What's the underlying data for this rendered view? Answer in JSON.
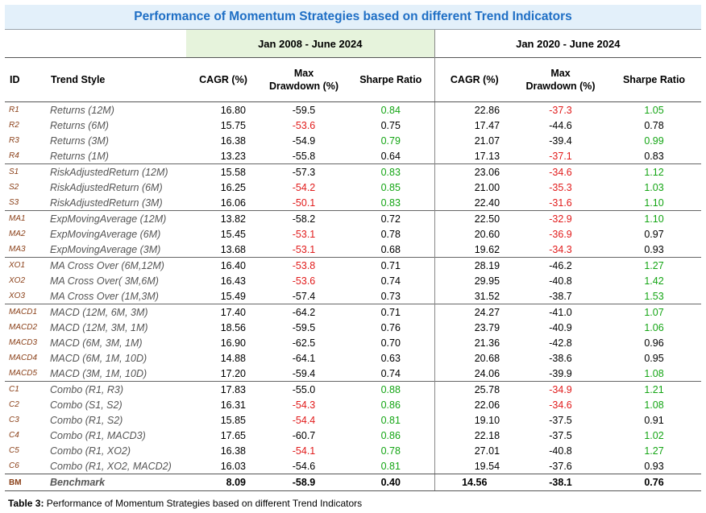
{
  "title": "Performance of Momentum Strategies based on different Trend Indicators",
  "periods": [
    "Jan 2008 - June 2024",
    "Jan 2020 - June 2024"
  ],
  "headers": {
    "id": "ID",
    "style": "Trend Style",
    "cagr": "CAGR (%)",
    "mdd_line1": "Max",
    "mdd_line2": "Drawdown (%)",
    "sharpe": "Sharpe Ratio"
  },
  "colors": {
    "title": "#1f6fc5",
    "negative": "#e11b1b",
    "positive": "#14a514",
    "id": "#8a3f17"
  },
  "rows": [
    {
      "id": "R1",
      "style": "Returns (12M)",
      "a": [
        "16.80",
        "-59.5",
        "0.84"
      ],
      "ac": [
        "",
        "",
        "g"
      ],
      "b": [
        "22.86",
        "-37.3",
        "1.05"
      ],
      "bc": [
        "",
        "r",
        "g"
      ],
      "g": 1
    },
    {
      "id": "R2",
      "style": "Returns (6M)",
      "a": [
        "15.75",
        "-53.6",
        "0.75"
      ],
      "ac": [
        "",
        "r",
        ""
      ],
      "b": [
        "17.47",
        "-44.6",
        "0.78"
      ],
      "bc": [
        "",
        "",
        ""
      ],
      "g": 0
    },
    {
      "id": "R3",
      "style": "Returns (3M)",
      "a": [
        "16.38",
        "-54.9",
        "0.79"
      ],
      "ac": [
        "",
        "",
        "g"
      ],
      "b": [
        "21.07",
        "-39.4",
        "0.99"
      ],
      "bc": [
        "",
        "",
        "g"
      ],
      "g": 0
    },
    {
      "id": "R4",
      "style": "Returns (1M)",
      "a": [
        "13.23",
        "-55.8",
        "0.64"
      ],
      "ac": [
        "",
        "",
        ""
      ],
      "b": [
        "17.13",
        "-37.1",
        "0.83"
      ],
      "bc": [
        "",
        "r",
        ""
      ],
      "g": 0
    },
    {
      "id": "S1",
      "style": "RiskAdjustedReturn (12M)",
      "a": [
        "15.58",
        "-57.3",
        "0.83"
      ],
      "ac": [
        "",
        "",
        "g"
      ],
      "b": [
        "23.06",
        "-34.6",
        "1.12"
      ],
      "bc": [
        "",
        "r",
        "g"
      ],
      "g": 1
    },
    {
      "id": "S2",
      "style": "RiskAdjustedReturn (6M)",
      "a": [
        "16.25",
        "-54.2",
        "0.85"
      ],
      "ac": [
        "",
        "r",
        "g"
      ],
      "b": [
        "21.00",
        "-35.3",
        "1.03"
      ],
      "bc": [
        "",
        "r",
        "g"
      ],
      "g": 0
    },
    {
      "id": "S3",
      "style": "RiskAdjustedReturn (3M)",
      "a": [
        "16.06",
        "-50.1",
        "0.83"
      ],
      "ac": [
        "",
        "r",
        "g"
      ],
      "b": [
        "22.40",
        "-31.6",
        "1.10"
      ],
      "bc": [
        "",
        "r",
        "g"
      ],
      "g": 0
    },
    {
      "id": "MA1",
      "style": "ExpMovingAverage (12M)",
      "a": [
        "13.82",
        "-58.2",
        "0.72"
      ],
      "ac": [
        "",
        "",
        ""
      ],
      "b": [
        "22.50",
        "-32.9",
        "1.10"
      ],
      "bc": [
        "",
        "r",
        "g"
      ],
      "g": 1
    },
    {
      "id": "MA2",
      "style": "ExpMovingAverage (6M)",
      "a": [
        "15.45",
        "-53.1",
        "0.78"
      ],
      "ac": [
        "",
        "r",
        ""
      ],
      "b": [
        "20.60",
        "-36.9",
        "0.97"
      ],
      "bc": [
        "",
        "r",
        ""
      ],
      "g": 0
    },
    {
      "id": "MA3",
      "style": "ExpMovingAverage (3M)",
      "a": [
        "13.68",
        "-53.1",
        "0.68"
      ],
      "ac": [
        "",
        "r",
        ""
      ],
      "b": [
        "19.62",
        "-34.3",
        "0.93"
      ],
      "bc": [
        "",
        "r",
        ""
      ],
      "g": 0
    },
    {
      "id": "XO1",
      "style": "MA Cross Over (6M,12M)",
      "a": [
        "16.40",
        "-53.8",
        "0.71"
      ],
      "ac": [
        "",
        "r",
        ""
      ],
      "b": [
        "28.19",
        "-46.2",
        "1.27"
      ],
      "bc": [
        "",
        "",
        "g"
      ],
      "g": 1
    },
    {
      "id": "XO2",
      "style": "MA Cross Over( 3M,6M)",
      "a": [
        "16.43",
        "-53.6",
        "0.74"
      ],
      "ac": [
        "",
        "r",
        ""
      ],
      "b": [
        "29.95",
        "-40.8",
        "1.42"
      ],
      "bc": [
        "",
        "",
        "g"
      ],
      "g": 0
    },
    {
      "id": "XO3",
      "style": "MA Cross Over (1M,3M)",
      "a": [
        "15.49",
        "-57.4",
        "0.73"
      ],
      "ac": [
        "",
        "",
        ""
      ],
      "b": [
        "31.52",
        "-38.7",
        "1.53"
      ],
      "bc": [
        "",
        "",
        "g"
      ],
      "g": 0
    },
    {
      "id": "MACD1",
      "style": "MACD (12M, 6M, 3M)",
      "a": [
        "17.40",
        "-64.2",
        "0.71"
      ],
      "ac": [
        "",
        "",
        ""
      ],
      "b": [
        "24.27",
        "-41.0",
        "1.07"
      ],
      "bc": [
        "",
        "",
        "g"
      ],
      "g": 1
    },
    {
      "id": "MACD2",
      "style": "MACD (12M, 3M, 1M)",
      "a": [
        "18.56",
        "-59.5",
        "0.76"
      ],
      "ac": [
        "",
        "",
        ""
      ],
      "b": [
        "23.79",
        "-40.9",
        "1.06"
      ],
      "bc": [
        "",
        "",
        "g"
      ],
      "g": 0
    },
    {
      "id": "MACD3",
      "style": "MACD (6M, 3M, 1M)",
      "a": [
        "16.90",
        "-62.5",
        "0.70"
      ],
      "ac": [
        "",
        "",
        ""
      ],
      "b": [
        "21.36",
        "-42.8",
        "0.96"
      ],
      "bc": [
        "",
        "",
        ""
      ],
      "g": 0
    },
    {
      "id": "MACD4",
      "style": "MACD (6M, 1M, 10D)",
      "a": [
        "14.88",
        "-64.1",
        "0.63"
      ],
      "ac": [
        "",
        "",
        ""
      ],
      "b": [
        "20.68",
        "-38.6",
        "0.95"
      ],
      "bc": [
        "",
        "",
        ""
      ],
      "g": 0
    },
    {
      "id": "MACD5",
      "style": "MACD (3M, 1M, 10D)",
      "a": [
        "17.20",
        "-59.4",
        "0.74"
      ],
      "ac": [
        "",
        "",
        ""
      ],
      "b": [
        "24.06",
        "-39.9",
        "1.08"
      ],
      "bc": [
        "",
        "",
        "g"
      ],
      "g": 0
    },
    {
      "id": "C1",
      "style": "Combo (R1, R3)",
      "a": [
        "17.83",
        "-55.0",
        "0.88"
      ],
      "ac": [
        "",
        "",
        "g"
      ],
      "b": [
        "25.78",
        "-34.9",
        "1.21"
      ],
      "bc": [
        "",
        "r",
        "g"
      ],
      "g": 1
    },
    {
      "id": "C2",
      "style": "Combo (S1, S2)",
      "a": [
        "16.31",
        "-54.3",
        "0.86"
      ],
      "ac": [
        "",
        "r",
        "g"
      ],
      "b": [
        "22.06",
        "-34.6",
        "1.08"
      ],
      "bc": [
        "",
        "r",
        "g"
      ],
      "g": 0
    },
    {
      "id": "C3",
      "style": "Combo (R1, S2)",
      "a": [
        "15.85",
        "-54.4",
        "0.81"
      ],
      "ac": [
        "",
        "r",
        "g"
      ],
      "b": [
        "19.10",
        "-37.5",
        "0.91"
      ],
      "bc": [
        "",
        "",
        ""
      ],
      "g": 0
    },
    {
      "id": "C4",
      "style": "Combo (R1, MACD3)",
      "a": [
        "17.65",
        "-60.7",
        "0.86"
      ],
      "ac": [
        "",
        "",
        "g"
      ],
      "b": [
        "22.18",
        "-37.5",
        "1.02"
      ],
      "bc": [
        "",
        "",
        "g"
      ],
      "g": 0
    },
    {
      "id": "C5",
      "style": "Combo (R1, XO2)",
      "a": [
        "16.38",
        "-54.1",
        "0.78"
      ],
      "ac": [
        "",
        "r",
        "g"
      ],
      "b": [
        "27.01",
        "-40.8",
        "1.27"
      ],
      "bc": [
        "",
        "",
        "g"
      ],
      "g": 0
    },
    {
      "id": "C6",
      "style": "Combo (R1, XO2, MACD2)",
      "a": [
        "16.03",
        "-54.6",
        "0.81"
      ],
      "ac": [
        "",
        "",
        "g"
      ],
      "b": [
        "19.54",
        "-37.6",
        "0.93"
      ],
      "bc": [
        "",
        "",
        ""
      ],
      "g": 0
    }
  ],
  "benchmark": {
    "id": "BM",
    "style": "Benchmark",
    "a": [
      "8.09",
      "-58.9",
      "0.40"
    ],
    "b": [
      "14.56",
      "-38.1",
      "0.76"
    ]
  },
  "caption": {
    "label": "Table 3:",
    "text": " Performance of Momentum Strategies based on different Trend Indicators"
  }
}
